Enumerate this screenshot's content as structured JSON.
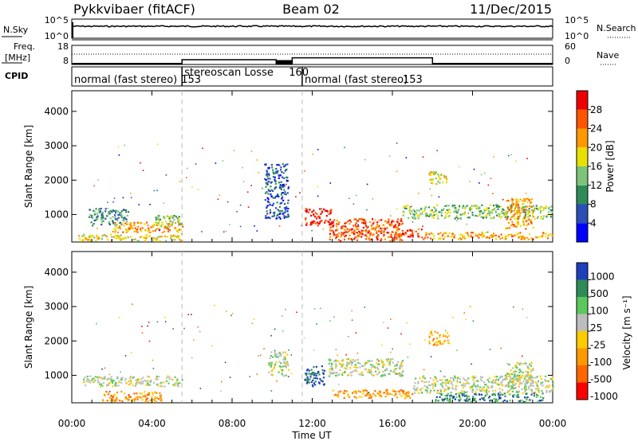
{
  "header": {
    "station": "Pykkvibaer (fitACF)",
    "beam": "Beam 02",
    "date": "11/Dec/2015"
  },
  "panel_noise": {
    "left_label": "N.Sky",
    "left_ticks": [
      "10^5",
      "10^0"
    ],
    "right_ticks": [
      "10^5",
      "10^0"
    ],
    "right_label": "N.Search"
  },
  "panel_freq": {
    "left_label_1": "Freq.",
    "left_label_2": "[MHz]",
    "left_ticks": [
      "18",
      "8"
    ],
    "right_ticks": [
      "60",
      "0"
    ],
    "right_label": "Nave"
  },
  "cpid": {
    "label": "CPID",
    "segments": [
      {
        "name": "normal (fast stereo)",
        "code": "153",
        "start_h": 0,
        "end_h": 5.5
      },
      {
        "name": "stereoscan Losse",
        "code": "160",
        "start_h": 5.5,
        "end_h": 11.5
      },
      {
        "name": "normal (fast stereo)",
        "code": "153",
        "start_h": 11.5,
        "end_h": 24
      }
    ]
  },
  "colors": {
    "power": [
      "#0000ff",
      "#2b4fb5",
      "#2e8b57",
      "#7dc47a",
      "#e8e000",
      "#ff9900",
      "#ff5500",
      "#ee0000"
    ],
    "velocity": [
      "#ff0000",
      "#ff6600",
      "#ff9900",
      "#ffcc00",
      "#bdbdbd",
      "#5bc85b",
      "#2e8b57",
      "#1d3fbb"
    ]
  },
  "x_axis": {
    "label": "Time UT",
    "ticks": [
      "00:00",
      "04:00",
      "08:00",
      "12:00",
      "16:00",
      "20:00",
      "00:00"
    ]
  },
  "y_axis": {
    "label": "Slant Range [km]",
    "ticks": [
      "1000",
      "2000",
      "3000",
      "4000"
    ]
  },
  "power_bar": {
    "label": "Power [dB]",
    "ticks": [
      "4",
      "8",
      "12",
      "16",
      "20",
      "24",
      "28"
    ]
  },
  "velocity_bar": {
    "label": "Velocity  [m s⁻¹]",
    "ticks": [
      "1000",
      "500",
      "100",
      "25",
      "-25",
      "-100",
      "-500",
      "-1000"
    ]
  },
  "chart_data": {
    "type": "heatmap",
    "x_unit": "hours UT",
    "xlim": [
      0,
      24
    ],
    "ylim": [
      200,
      4600
    ],
    "mode_change_times_h": [
      5.5,
      11.5
    ],
    "frequency_MHz": [
      {
        "start_h": 0,
        "end_h": 5.5,
        "value": 8.5
      },
      {
        "start_h": 5.5,
        "end_h": 10.2,
        "value": 10.5
      },
      {
        "start_h": 10.2,
        "end_h": 11.0,
        "value": 8.2
      },
      {
        "start_h": 11.0,
        "end_h": 18.0,
        "value": 11.5
      },
      {
        "start_h": 18.0,
        "end_h": 24,
        "value": 8.5
      }
    ],
    "power_echoes": [
      {
        "t0": 0.3,
        "t1": 5.5,
        "r0": 250,
        "r1": 450,
        "level": 4
      },
      {
        "t0": 0.8,
        "t1": 2.8,
        "r0": 700,
        "r1": 1200,
        "level": 2
      },
      {
        "t0": 2.0,
        "t1": 5.5,
        "r0": 500,
        "r1": 800,
        "level": 5
      },
      {
        "t0": 4.0,
        "t1": 5.5,
        "r0": 650,
        "r1": 1000,
        "level": 3
      },
      {
        "t0": 9.6,
        "t1": 10.8,
        "r0": 900,
        "r1": 2500,
        "level": 1
      },
      {
        "t0": 11.6,
        "t1": 13.0,
        "r0": 700,
        "r1": 1200,
        "level": 7
      },
      {
        "t0": 12.8,
        "t1": 16.5,
        "r0": 250,
        "r1": 900,
        "level": 6
      },
      {
        "t0": 14.0,
        "t1": 15.0,
        "r0": 400,
        "r1": 650,
        "level": 6
      },
      {
        "t0": 16.2,
        "t1": 17.5,
        "r0": 350,
        "r1": 600,
        "level": 6
      },
      {
        "t0": 17.5,
        "t1": 24,
        "r0": 300,
        "r1": 500,
        "level": 5
      },
      {
        "t0": 16.5,
        "t1": 24,
        "r0": 900,
        "r1": 1300,
        "level": 3
      },
      {
        "t0": 17.8,
        "t1": 18.8,
        "r0": 1900,
        "r1": 2300,
        "level": 4
      },
      {
        "t0": 21.6,
        "t1": 23.0,
        "r0": 600,
        "r1": 1500,
        "level": 5
      }
    ],
    "velocity_echoes": [
      {
        "t0": 0.5,
        "t1": 5.5,
        "r0": 700,
        "r1": 1000,
        "level": 4
      },
      {
        "t0": 1.5,
        "t1": 4.5,
        "r0": 250,
        "r1": 550,
        "level": 2
      },
      {
        "t0": 9.8,
        "t1": 10.8,
        "r0": 1000,
        "r1": 1700,
        "level": 4
      },
      {
        "t0": 11.6,
        "t1": 12.6,
        "r0": 700,
        "r1": 1300,
        "level": 7
      },
      {
        "t0": 12.8,
        "t1": 16.5,
        "r0": 1000,
        "r1": 1500,
        "level": 4
      },
      {
        "t0": 13.0,
        "t1": 17.0,
        "r0": 350,
        "r1": 600,
        "level": 2
      },
      {
        "t0": 17.0,
        "t1": 24,
        "r0": 500,
        "r1": 1000,
        "level": 4
      },
      {
        "t0": 18.0,
        "t1": 23.5,
        "r0": 250,
        "r1": 500,
        "level": 6
      },
      {
        "t0": 17.8,
        "t1": 18.8,
        "r0": 1900,
        "r1": 2300,
        "level": 2
      },
      {
        "t0": 21.6,
        "t1": 23.0,
        "r0": 800,
        "r1": 1400,
        "level": 4
      }
    ]
  }
}
